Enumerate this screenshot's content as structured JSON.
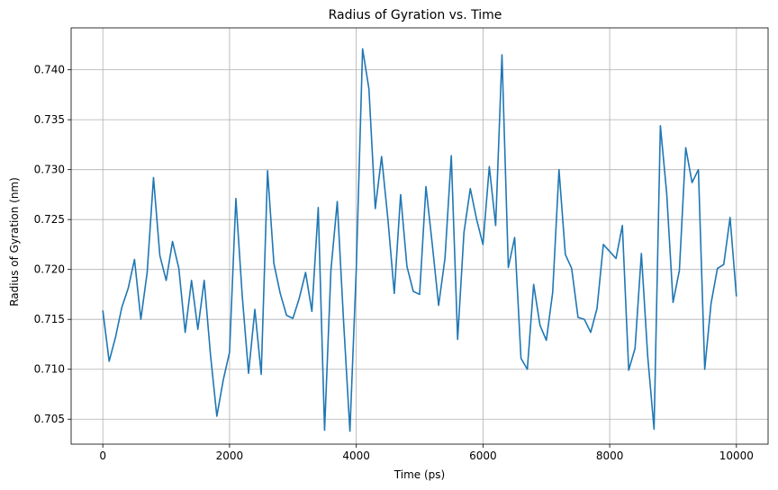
{
  "chart_data": {
    "type": "line",
    "title": "Radius of Gyration vs. Time",
    "xlabel": "Time (ps)",
    "ylabel": "Radius of Gyration (nm)",
    "xlim": [
      -500,
      10500
    ],
    "ylim": [
      0.7025,
      0.7442
    ],
    "xticks": [
      0,
      2000,
      4000,
      6000,
      8000,
      10000
    ],
    "xtick_labels": [
      "0",
      "2000",
      "4000",
      "6000",
      "8000",
      "10000"
    ],
    "yticks": [
      0.705,
      0.71,
      0.715,
      0.72,
      0.725,
      0.73,
      0.735,
      0.74
    ],
    "ytick_labels": [
      "0.705",
      "0.710",
      "0.715",
      "0.720",
      "0.725",
      "0.730",
      "0.735",
      "0.740"
    ],
    "grid": true,
    "line_color": "#1f77b4",
    "series": [
      {
        "x": [
          0,
          100,
          200,
          300,
          400,
          500,
          600,
          700,
          800,
          900,
          1000,
          1100,
          1200,
          1300,
          1400,
          1500,
          1600,
          1700,
          1800,
          1900,
          2000,
          2100,
          2200,
          2300,
          2400,
          2500,
          2600,
          2700,
          2800,
          2900,
          3000,
          3100,
          3200,
          3300,
          3400,
          3500,
          3600,
          3700,
          3800,
          3900,
          4000,
          4100,
          4200,
          4300,
          4400,
          4500,
          4600,
          4700,
          4800,
          4900,
          5000,
          5100,
          5200,
          5300,
          5400,
          5500,
          5600,
          5700,
          5800,
          5900,
          6000,
          6100,
          6200,
          6300,
          6400,
          6500,
          6600,
          6700,
          6800,
          6900,
          7000,
          7100,
          7200,
          7300,
          7400,
          7500,
          7600,
          7700,
          7800,
          7900,
          8000,
          8100,
          8200,
          8300,
          8400,
          8500,
          8600,
          8700,
          8800,
          8900,
          9000,
          9100,
          9200,
          9300,
          9400,
          9500,
          9600,
          9700,
          9800,
          9900,
          10000
        ],
        "values": [
          0.7159,
          0.7108,
          0.7132,
          0.7162,
          0.7181,
          0.721,
          0.715,
          0.7197,
          0.7292,
          0.7214,
          0.7189,
          0.7228,
          0.7201,
          0.7137,
          0.7189,
          0.714,
          0.7189,
          0.7114,
          0.7053,
          0.7089,
          0.7117,
          0.7271,
          0.7174,
          0.7096,
          0.716,
          0.7095,
          0.7299,
          0.7206,
          0.7176,
          0.7154,
          0.7151,
          0.7171,
          0.7197,
          0.7158,
          0.7262,
          0.7039,
          0.7199,
          0.7268,
          0.7148,
          0.7038,
          0.72,
          0.7421,
          0.7381,
          0.7261,
          0.7313,
          0.725,
          0.7176,
          0.7275,
          0.7203,
          0.7178,
          0.7175,
          0.7283,
          0.7225,
          0.7164,
          0.7211,
          0.7314,
          0.713,
          0.7237,
          0.7281,
          0.725,
          0.7225,
          0.7303,
          0.7244,
          0.7415,
          0.7202,
          0.7232,
          0.7111,
          0.71,
          0.7185,
          0.7144,
          0.7129,
          0.7177,
          0.73,
          0.7215,
          0.7201,
          0.7152,
          0.715,
          0.7137,
          0.7161,
          0.7225,
          0.7218,
          0.7211,
          0.7244,
          0.7099,
          0.7121,
          0.7216,
          0.7113,
          0.704,
          0.7344,
          0.7276,
          0.7167,
          0.7199,
          0.7322,
          0.7287,
          0.73,
          0.71,
          0.7166,
          0.7201,
          0.7205,
          0.7252,
          0.7173
        ]
      }
    ]
  }
}
